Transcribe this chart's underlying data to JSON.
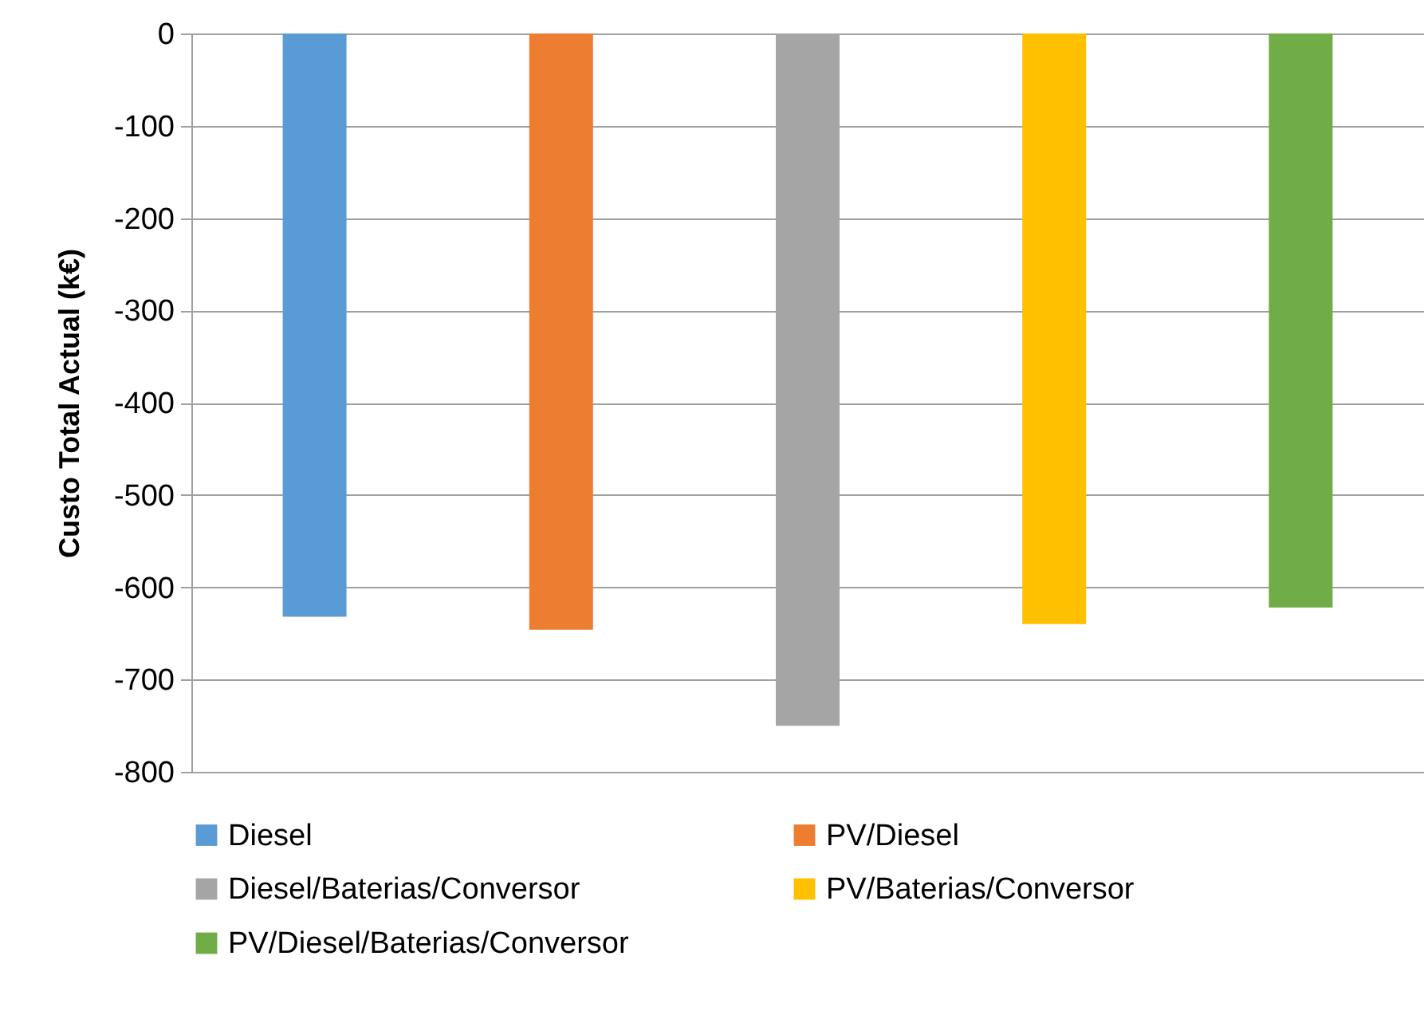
{
  "chart_data": {
    "type": "bar",
    "ylabel": "Custo Total Actual (k€)",
    "categories": [
      null,
      null,
      null,
      null,
      null
    ],
    "series": [
      {
        "name": "Diesel",
        "color": "#5b9bd5",
        "values": [
          -632,
          null,
          null,
          null,
          null
        ]
      },
      {
        "name": "PV/Diesel",
        "color": "#ed7d31",
        "values": [
          null,
          -646,
          null,
          null,
          null
        ]
      },
      {
        "name": "Diesel/Baterias/Conversor",
        "color": "#a5a5a5",
        "values": [
          null,
          null,
          -750,
          null,
          null
        ]
      },
      {
        "name": "PV/Baterias/Conversor",
        "color": "#ffc000",
        "values": [
          null,
          null,
          null,
          -640,
          null
        ]
      },
      {
        "name": "PV/Diesel/Baterias/Conversor",
        "color": "#70ad47",
        "values": [
          null,
          null,
          null,
          null,
          -622
        ]
      }
    ],
    "ylim": [
      -800,
      0
    ],
    "yticks": [
      0,
      -100,
      -200,
      -300,
      -400,
      -500,
      -600,
      -700,
      -800
    ],
    "grid": "y",
    "legend": "bottom",
    "tick_labels": "y"
  }
}
